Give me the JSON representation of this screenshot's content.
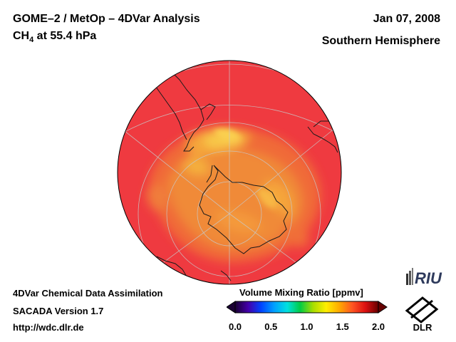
{
  "header": {
    "title": "GOME–2 / MetOp – 4DVar Analysis",
    "species_main": "CH",
    "species_sub": "4",
    "species_rest": " at 55.4 hPa",
    "date": "Jan 07, 2008",
    "region": "Southern Hemisphere"
  },
  "footer": {
    "line1": "4DVar Chemical Data Assimilation",
    "line2": "SACADA Version 1.7",
    "line3": "http://wdc.dlr.de"
  },
  "colorbar": {
    "title": "Volume Mixing Ratio [ppmv]",
    "ticks": [
      "0.0",
      "0.5",
      "1.0",
      "1.5",
      "2.0"
    ],
    "tick_values": [
      0.0,
      0.5,
      1.0,
      1.5,
      2.0
    ],
    "range": [
      0.0,
      2.0
    ],
    "colors": [
      "#1a0033",
      "#4400aa",
      "#0044ff",
      "#00a0ff",
      "#00e0e0",
      "#00cc44",
      "#aadd00",
      "#ffee00",
      "#ffaa00",
      "#ff5522",
      "#dd1111",
      "#660000"
    ]
  },
  "logos": {
    "riu": "RIU",
    "dlr": "DLR"
  },
  "map": {
    "projection": "orthographic polar, south pole centered",
    "background_value_ppmv": 1.75,
    "field_colors": {
      "high": "#ef3a40",
      "mid": "#f06a38",
      "low": "#f5a63a",
      "min": "#f8c84a"
    }
  }
}
